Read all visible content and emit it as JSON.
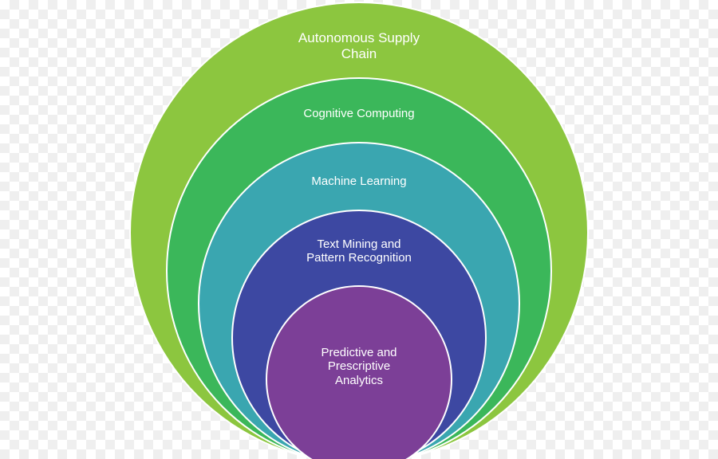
{
  "diagram": {
    "layers": [
      {
        "label": "Autonomous Supply\nChain",
        "color": "#8cc63f"
      },
      {
        "label": "Cognitive Computing",
        "color": "#3bb75a"
      },
      {
        "label": "Machine Learning",
        "color": "#3aa6b0"
      },
      {
        "label": "Text Mining and\nPattern Recognition",
        "color": "#3d48a2"
      },
      {
        "label": "Predictive and\nPrescriptive\nAnalytics",
        "color": "#7c3f97"
      }
    ]
  }
}
